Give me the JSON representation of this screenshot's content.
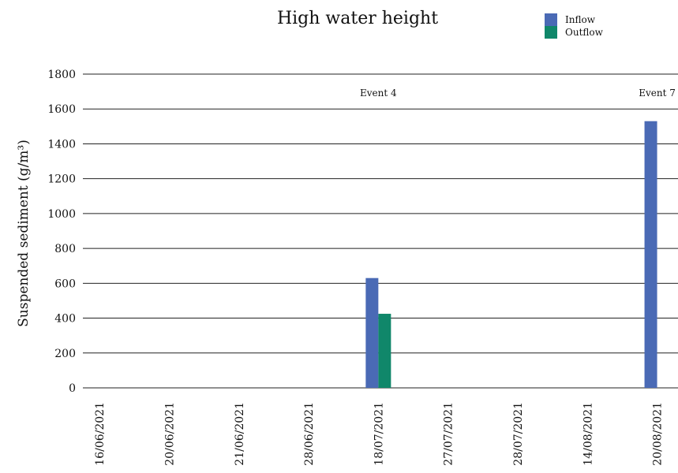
{
  "chart_data": {
    "type": "bar",
    "title": "High water height",
    "ylabel": "Suspended sediment (g/m³)",
    "xlabel": "",
    "ylim": [
      0,
      1800
    ],
    "yticks": [
      0,
      200,
      400,
      600,
      800,
      1000,
      1200,
      1400,
      1600,
      1800
    ],
    "grid": true,
    "legend_position": "top-right",
    "categories": [
      "16/06/2021",
      "20/06/2021",
      "21/06/2021",
      "28/06/2021",
      "18/07/2021",
      "27/07/2021",
      "28/07/2021",
      "14/08/2021",
      "20/08/2021"
    ],
    "series": [
      {
        "name": "Inflow",
        "color": "#4a6ab5",
        "values": [
          0,
          0,
          0,
          0,
          630,
          0,
          0,
          0,
          1530
        ]
      },
      {
        "name": "Outflow",
        "color": "#10876a",
        "values": [
          0,
          0,
          0,
          0,
          425,
          0,
          0,
          0,
          0
        ]
      }
    ],
    "annotations": [
      {
        "category": "18/07/2021",
        "text": "Event 4",
        "y": 1650
      },
      {
        "category": "20/08/2021",
        "text": "Event 7",
        "y": 1650
      }
    ]
  }
}
